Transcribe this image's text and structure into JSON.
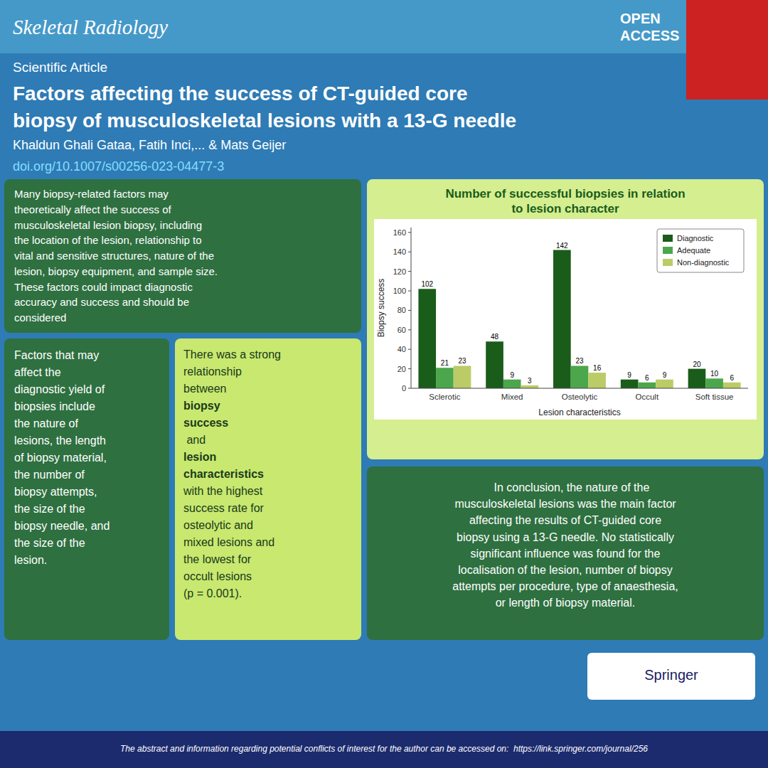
{
  "page": {
    "journal_title": "Skeletal Radiology",
    "open_access": [
      "OPEN",
      "ACCESS"
    ],
    "article_type": "Scientific Article",
    "paper_title": [
      "Factors affecting the success of CT-guided core",
      "biopsy of musculoskeletal lesions with a 13-G needle"
    ],
    "authors": "Khaldun Ghali Gataa, Fatih Inci,... & Mats Geijer",
    "doi": "doi.org/10.1007/s00256-023-04477-3",
    "abstract_text": "Many biopsy-related factors may\ntheoretically affect the success of\nmusculoskeletal lesion biopsy, including\nthe location of the lesion, relationship to\nvital and sensitive structures, nature of the\nlesion, biopsy equipment, and sample size.\nThese factors could impact diagnostic\naccuracy and success and should be\nconsidered",
    "factors_text": "Factors that may\naffect the\ndiagnostic yield of\nbiopsies include\nthe nature of\nlesions, the length\nof biopsy material,\nthe number of\nbiopsy attempts,\nthe size of the\nbiopsy needle, and\nthe size of the\nlesion.",
    "rel_lines": [
      {
        "text": "There was a strong",
        "bold": false
      },
      {
        "text": "relationship",
        "bold": false
      },
      {
        "text": "between ",
        "bold": false
      },
      {
        "text": "biopsy",
        "bold": true
      },
      {
        "text": "success",
        "bold": true
      },
      {
        "text": " and",
        "bold": false
      },
      {
        "text": "lesion",
        "bold": true
      },
      {
        "text": "characteristics",
        "bold": true
      },
      {
        "text": "with the highest",
        "bold": false
      },
      {
        "text": "success rate for",
        "bold": false
      },
      {
        "text": "osteolytic and",
        "bold": false
      },
      {
        "text": "mixed lesions and",
        "bold": false
      },
      {
        "text": "the lowest for",
        "bold": false
      },
      {
        "text": "occult lesions",
        "bold": false
      },
      {
        "text": "(p = 0.001).",
        "bold": false
      }
    ],
    "conclusion_text": "    In conclusion, the nature of the\nmusculoskeletal lesions was the main factor\naffecting the results of CT-guided core\nbiopsy using a 13-G needle. No statistically\nsignificant influence was found for the\nlocalisation of the lesion, number of biopsy\nattempts per procedure, type of anaesthesia,\nor length of biopsy material.",
    "logo_text": "Springer",
    "footer_text": "The abstract and information regarding potential conflicts of interest for the author can be accessed on:  https://link.springer.com/journal/256"
  },
  "chart_data": {
    "type": "bar",
    "title": "Number of successful biopsies in relation\nto lesion character",
    "x_label": "Lesion characteristics",
    "y_label": "Biopsy success",
    "categories": [
      "Sclerotic",
      "Mixed",
      "Osteolytic",
      "Occult",
      "Soft tissue"
    ],
    "series": [
      {
        "name": "Diagnostic",
        "color": "#1A5C1A",
        "values": [
          102,
          48,
          142,
          9,
          20
        ]
      },
      {
        "name": "Adequate",
        "color": "#4CA64C",
        "values": [
          21,
          9,
          23,
          6,
          10
        ]
      },
      {
        "name": "Non-diagnostic",
        "color": "#BBCC66",
        "values": [
          23,
          3,
          16,
          9,
          6
        ]
      }
    ],
    "ylim": [
      0,
      165
    ],
    "yticks": [
      0,
      20,
      40,
      60,
      80,
      100,
      120,
      140,
      160
    ],
    "grid": false,
    "legend": "upper right",
    "data_labels": true
  }
}
